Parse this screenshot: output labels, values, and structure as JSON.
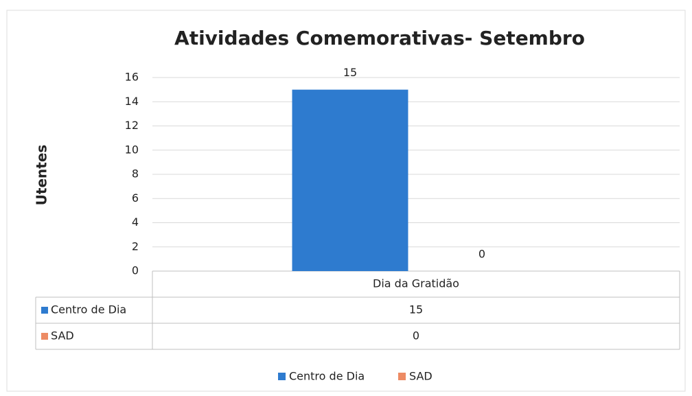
{
  "chart_data": {
    "type": "bar",
    "title": "Atividades Comemorativas- Setembro",
    "y_label": "Utentes",
    "categories": [
      "Dia da Gratidão"
    ],
    "series": [
      {
        "name": "Centro de Dia",
        "color": "#2e7bcf",
        "values": [
          15
        ]
      },
      {
        "name": "SAD",
        "color": "#ed8b64",
        "values": [
          0
        ]
      }
    ],
    "ylim": [
      0,
      16
    ],
    "yticks": [
      0,
      2,
      4,
      6,
      8,
      10,
      12,
      14,
      16
    ],
    "grid": true,
    "data_table": true,
    "legend": "bottom"
  }
}
